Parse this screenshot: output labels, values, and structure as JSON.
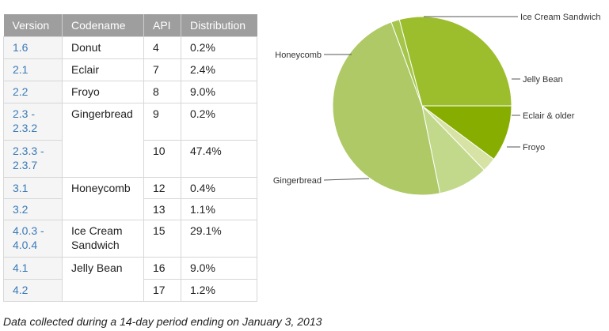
{
  "table": {
    "headers": [
      "Version",
      "Codename",
      "API",
      "Distribution"
    ],
    "rows": [
      {
        "version": "1.6",
        "codename": "Donut",
        "api": "4",
        "distribution": "0.2%"
      },
      {
        "version": "2.1",
        "codename": "Eclair",
        "api": "7",
        "distribution": "2.4%"
      },
      {
        "version": "2.2",
        "codename": "Froyo",
        "api": "8",
        "distribution": "9.0%"
      },
      {
        "version": "2.3 -\n2.3.2",
        "codename": "Gingerbread",
        "api": "9",
        "distribution": "0.2%"
      },
      {
        "version": "2.3.3 -\n2.3.7",
        "codename": "",
        "api": "10",
        "distribution": "47.4%"
      },
      {
        "version": "3.1",
        "codename": "Honeycomb",
        "api": "12",
        "distribution": "0.4%"
      },
      {
        "version": "3.2",
        "codename": "",
        "api": "13",
        "distribution": "1.1%"
      },
      {
        "version": "4.0.3 -\n4.0.4",
        "codename": "Ice Cream\nSandwich",
        "api": "15",
        "distribution": "29.1%"
      },
      {
        "version": "4.1",
        "codename": "Jelly Bean",
        "api": "16",
        "distribution": "9.0%"
      },
      {
        "version": "4.2",
        "codename": "",
        "api": "17",
        "distribution": "1.2%"
      }
    ]
  },
  "chart_data": {
    "type": "pie",
    "slices": [
      {
        "label": "Ice Cream Sandwich",
        "value": 29.1,
        "color": "#9cbe2c"
      },
      {
        "label": "Jelly Bean",
        "value": 10.2,
        "color": "#86ad00"
      },
      {
        "label": "Eclair & older",
        "value": 2.6,
        "color": "#d6e3a5"
      },
      {
        "label": "Froyo",
        "value": 9.0,
        "color": "#c2d98b"
      },
      {
        "label": "Gingerbread",
        "value": 47.6,
        "color": "#aec966"
      },
      {
        "label": "Honeycomb",
        "value": 1.5,
        "color": "#a5c54b"
      }
    ],
    "title": "",
    "legend": "callout labels"
  },
  "footnote": "Data collected during a 14-day period ending on January 3, 2013"
}
